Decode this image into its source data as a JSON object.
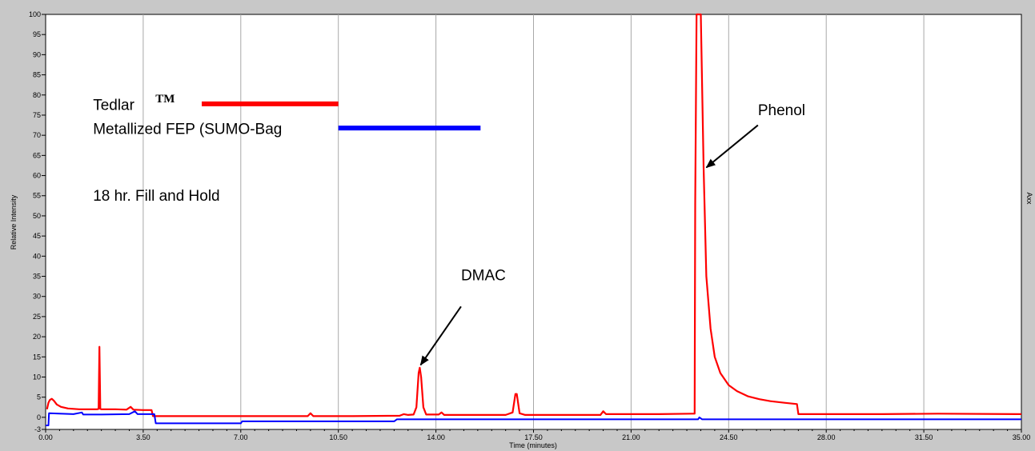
{
  "chart_data": {
    "type": "line",
    "xlabel": "Time (minutes)",
    "ylabel": "Relative Intensity",
    "right_label": "Axx",
    "xlim": [
      0,
      35
    ],
    "ylim": [
      -3,
      100
    ],
    "x_ticks": [
      0.0,
      3.5,
      7.0,
      10.5,
      14.0,
      17.5,
      21.0,
      24.5,
      28.0,
      31.5,
      35.0
    ],
    "x_tick_labels": [
      "0.00",
      "3.50",
      "7.00",
      "10.50",
      "14.00",
      "17.50",
      "21.00",
      "24.50",
      "28.00",
      "31.50",
      "35.00"
    ],
    "y_ticks": [
      -3,
      0,
      5,
      10,
      15,
      20,
      25,
      30,
      35,
      40,
      45,
      50,
      55,
      60,
      65,
      70,
      75,
      80,
      85,
      90,
      95,
      100
    ],
    "y_tick_labels": [
      "-3",
      "0",
      "5",
      "10",
      "15",
      "20",
      "25",
      "30",
      "35",
      "40",
      "45",
      "50",
      "55",
      "60",
      "65",
      "70",
      "75",
      "80",
      "85",
      "90",
      "95",
      "100"
    ],
    "grid": true,
    "series": [
      {
        "name": "Tedlar",
        "color": "#ff0000",
        "points": [
          [
            0.05,
            2.0
          ],
          [
            0.1,
            3.6
          ],
          [
            0.15,
            4.3
          ],
          [
            0.22,
            4.6
          ],
          [
            0.3,
            4.1
          ],
          [
            0.4,
            3.2
          ],
          [
            0.55,
            2.6
          ],
          [
            0.8,
            2.2
          ],
          [
            1.2,
            2.0
          ],
          [
            1.6,
            2.0
          ],
          [
            1.85,
            2.0
          ],
          [
            1.9,
            2.1
          ],
          [
            1.93,
            17.5
          ],
          [
            1.96,
            2.1
          ],
          [
            2.0,
            2.0
          ],
          [
            2.5,
            2.0
          ],
          [
            2.9,
            1.9
          ],
          [
            3.05,
            2.6
          ],
          [
            3.15,
            1.9
          ],
          [
            3.5,
            1.8
          ],
          [
            3.8,
            1.8
          ],
          [
            3.85,
            0.3
          ],
          [
            5.0,
            0.3
          ],
          [
            7.0,
            0.3
          ],
          [
            9.4,
            0.3
          ],
          [
            9.5,
            1.0
          ],
          [
            9.6,
            0.3
          ],
          [
            11.0,
            0.3
          ],
          [
            12.7,
            0.4
          ],
          [
            12.85,
            0.8
          ],
          [
            13.0,
            0.6
          ],
          [
            13.2,
            0.7
          ],
          [
            13.3,
            2.5
          ],
          [
            13.38,
            11.0
          ],
          [
            13.42,
            12.3
          ],
          [
            13.47,
            10.0
          ],
          [
            13.55,
            2.5
          ],
          [
            13.65,
            0.7
          ],
          [
            14.1,
            0.7
          ],
          [
            14.2,
            1.2
          ],
          [
            14.3,
            0.6
          ],
          [
            16.5,
            0.6
          ],
          [
            16.75,
            1.2
          ],
          [
            16.85,
            5.8
          ],
          [
            16.9,
            5.8
          ],
          [
            17.0,
            1.0
          ],
          [
            17.2,
            0.6
          ],
          [
            19.9,
            0.6
          ],
          [
            20.0,
            1.5
          ],
          [
            20.1,
            0.8
          ],
          [
            22.0,
            0.8
          ],
          [
            23.2,
            0.9
          ],
          [
            23.28,
            0.9
          ],
          [
            23.3,
            53.0
          ],
          [
            23.35,
            100.0
          ],
          [
            23.5,
            100.0
          ],
          [
            23.6,
            62.0
          ],
          [
            23.7,
            35.0
          ],
          [
            23.85,
            22.0
          ],
          [
            24.0,
            15.0
          ],
          [
            24.2,
            11.0
          ],
          [
            24.5,
            8.0
          ],
          [
            24.8,
            6.5
          ],
          [
            25.2,
            5.2
          ],
          [
            25.6,
            4.5
          ],
          [
            26.0,
            4.0
          ],
          [
            26.5,
            3.6
          ],
          [
            26.95,
            3.3
          ],
          [
            27.0,
            0.8
          ],
          [
            28.5,
            0.8
          ],
          [
            30.0,
            0.8
          ],
          [
            32.0,
            0.9
          ],
          [
            35.0,
            0.8
          ]
        ]
      },
      {
        "name": "Metallized FEP (SUMO-Bag",
        "color": "#0000ff",
        "points": [
          [
            0.0,
            -2.0
          ],
          [
            0.1,
            -2.0
          ],
          [
            0.12,
            1.0
          ],
          [
            0.5,
            0.9
          ],
          [
            1.0,
            0.8
          ],
          [
            1.3,
            1.2
          ],
          [
            1.35,
            0.7
          ],
          [
            2.0,
            0.7
          ],
          [
            3.0,
            0.8
          ],
          [
            3.2,
            1.5
          ],
          [
            3.3,
            0.8
          ],
          [
            3.9,
            0.8
          ],
          [
            3.95,
            -1.5
          ],
          [
            7.0,
            -1.5
          ],
          [
            7.05,
            -1.0
          ],
          [
            10.0,
            -1.0
          ],
          [
            12.5,
            -1.0
          ],
          [
            12.6,
            -0.5
          ],
          [
            14.0,
            -0.5
          ],
          [
            20.0,
            -0.5
          ],
          [
            23.0,
            -0.5
          ],
          [
            23.4,
            -0.5
          ],
          [
            23.45,
            0.0
          ],
          [
            23.55,
            -0.5
          ],
          [
            35.0,
            -0.5
          ]
        ]
      }
    ],
    "annotations": [
      {
        "text": "DMAC",
        "target": [
          13.45,
          13.0
        ],
        "label_at": [
          14.9,
          34.0
        ],
        "arrow_from": [
          14.9,
          27.5
        ]
      },
      {
        "text": "Phenol",
        "target": [
          23.7,
          62.0
        ],
        "label_at": [
          25.55,
          75.0
        ],
        "arrow_from": [
          25.55,
          72.5
        ]
      }
    ],
    "legend": {
      "position": "top-left",
      "items": [
        {
          "label": "Tedlar",
          "suffix": "TM",
          "color": "#ff0000"
        },
        {
          "label": "Metallized FEP (SUMO-Bag",
          "suffix": "",
          "color": "#0000ff"
        }
      ],
      "note": "18 hr. Fill and Hold"
    }
  }
}
